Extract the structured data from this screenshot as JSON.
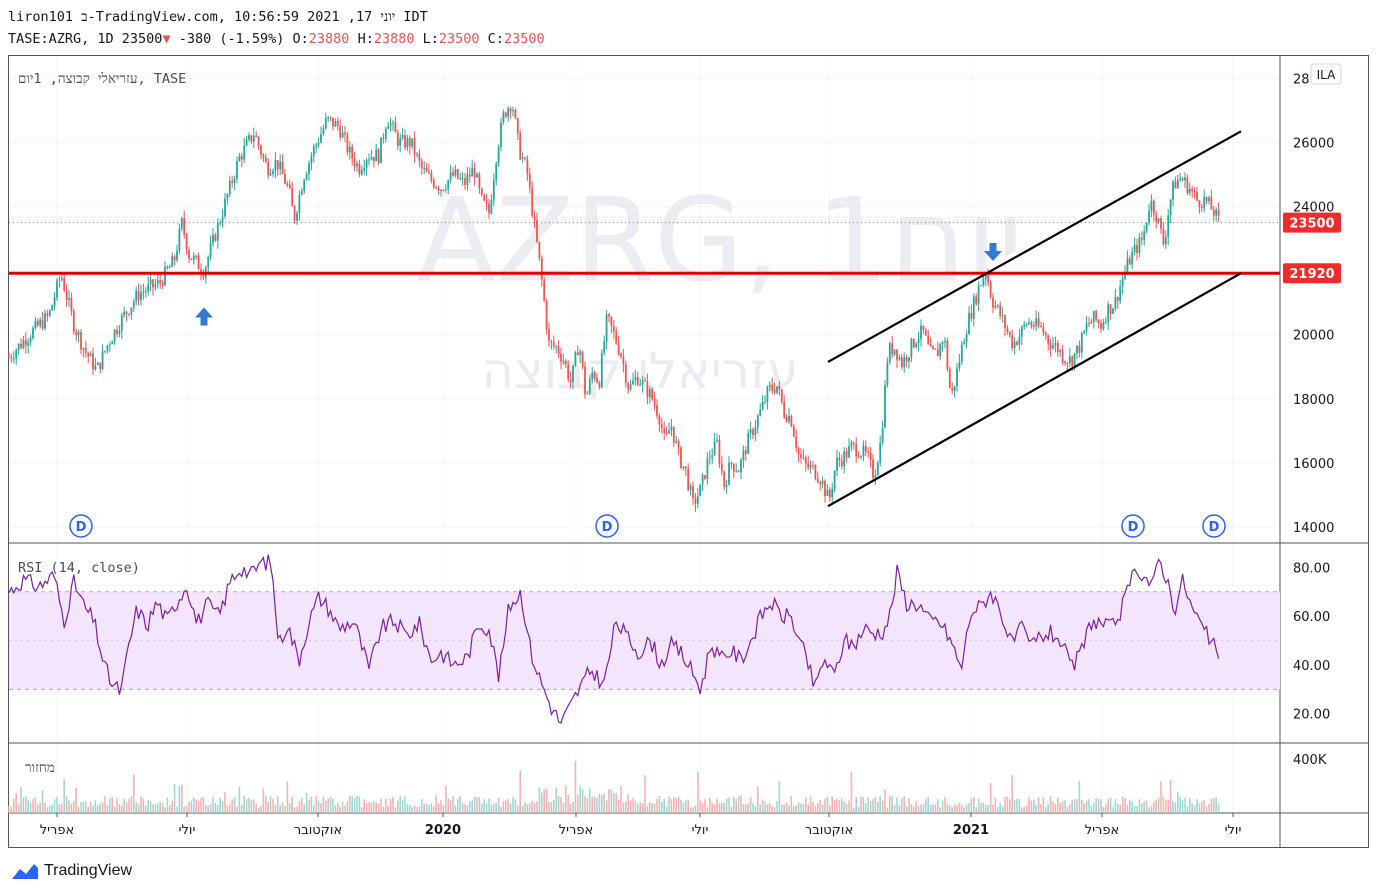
{
  "header": {
    "line1": "liron101 ב-TradingView.com, יוני 17, 2021 10:56:59 IDT",
    "symbol": "TASE:AZRG, 1D 23500",
    "change": "-380 (-1.59%)",
    "o_label": "O:",
    "o_val": "23880",
    "h_label": "H:",
    "h_val": "23880",
    "l_label": "L:",
    "l_val": "23500",
    "c_label": "C:",
    "c_val": "23500"
  },
  "colors": {
    "up": "#26a69a",
    "down": "#ef5350",
    "rsi": "#7b1fa2",
    "rsi_band": "#f3e5fb",
    "hline": "#e00000",
    "arrow": "#2f7bd0",
    "price_label_bg": "#ef2c2c",
    "dividend": "#2962ff"
  },
  "main_legend": "עזריאלי קבוצה, 1יום, TASE",
  "watermark": {
    "big": "AZRG, 1יום",
    "small": "עזריאלי קבוצה"
  },
  "currency_badge": "ILA",
  "rsi_legend": "RSI (14, close)",
  "volume_legend": "מחזור",
  "price_labels": {
    "last": "23500",
    "line": "21920"
  },
  "x_ticks": [
    "אפריל",
    "יולי",
    "אוקטובר",
    "2020",
    "אפריל",
    "יולי",
    "אוקטובר",
    "2021",
    "אפריל",
    "יולי"
  ],
  "dividend_marker": "D",
  "brand": "TradingView",
  "chart_data": [
    {
      "type": "candlestick",
      "title": "עזריאלי קבוצה, 1יום, TASE",
      "series_anchor_path": [
        [
          0,
          19300
        ],
        [
          20,
          20000
        ],
        [
          40,
          20600
        ],
        [
          52,
          21900
        ],
        [
          65,
          20300
        ],
        [
          76,
          19500
        ],
        [
          88,
          18900
        ],
        [
          100,
          19800
        ],
        [
          115,
          20600
        ],
        [
          130,
          21300
        ],
        [
          150,
          21600
        ],
        [
          165,
          22300
        ],
        [
          173,
          23500
        ],
        [
          180,
          22500
        ],
        [
          195,
          22000
        ],
        [
          215,
          24000
        ],
        [
          230,
          25500
        ],
        [
          245,
          26300
        ],
        [
          258,
          25200
        ],
        [
          268,
          25400
        ],
        [
          280,
          24500
        ],
        [
          285,
          23600
        ],
        [
          295,
          25000
        ],
        [
          305,
          25800
        ],
        [
          318,
          26700
        ],
        [
          330,
          26500
        ],
        [
          340,
          25700
        ],
        [
          350,
          25200
        ],
        [
          358,
          25600
        ],
        [
          370,
          25600
        ],
        [
          378,
          26800
        ],
        [
          390,
          26000
        ],
        [
          402,
          26000
        ],
        [
          412,
          25200
        ],
        [
          420,
          24900
        ],
        [
          432,
          24600
        ],
        [
          445,
          25000
        ],
        [
          455,
          24700
        ],
        [
          465,
          25200
        ],
        [
          472,
          24200
        ],
        [
          480,
          23800
        ],
        [
          488,
          25800
        ],
        [
          495,
          26900
        ],
        [
          503,
          27300
        ],
        [
          510,
          25800
        ],
        [
          518,
          25100
        ],
        [
          525,
          23500
        ],
        [
          532,
          21900
        ],
        [
          540,
          19700
        ],
        [
          548,
          19600
        ],
        [
          555,
          19200
        ],
        [
          562,
          18500
        ],
        [
          570,
          19800
        ],
        [
          577,
          18000
        ],
        [
          584,
          18900
        ],
        [
          590,
          18500
        ],
        [
          598,
          20500
        ],
        [
          605,
          20000
        ],
        [
          612,
          19400
        ],
        [
          620,
          18300
        ],
        [
          628,
          18700
        ],
        [
          635,
          18400
        ],
        [
          642,
          18100
        ],
        [
          650,
          17500
        ],
        [
          656,
          16600
        ],
        [
          662,
          17200
        ],
        [
          670,
          16200
        ],
        [
          677,
          15700
        ],
        [
          684,
          14700
        ],
        [
          692,
          15200
        ],
        [
          700,
          16200
        ],
        [
          708,
          16600
        ],
        [
          715,
          15300
        ],
        [
          722,
          16000
        ],
        [
          730,
          15800
        ],
        [
          738,
          16600
        ],
        [
          746,
          17200
        ],
        [
          754,
          17800
        ],
        [
          760,
          18300
        ],
        [
          768,
          18400
        ],
        [
          775,
          17600
        ],
        [
          782,
          17400
        ],
        [
          790,
          16200
        ],
        [
          797,
          15900
        ],
        [
          804,
          15800
        ],
        [
          812,
          15500
        ],
        [
          820,
          14800
        ],
        [
          827,
          16000
        ],
        [
          835,
          16200
        ],
        [
          843,
          16500
        ],
        [
          850,
          16400
        ],
        [
          858,
          16200
        ],
        [
          865,
          15600
        ],
        [
          872,
          16700
        ],
        [
          879,
          19500
        ],
        [
          886,
          19600
        ],
        [
          893,
          19100
        ],
        [
          900,
          19500
        ],
        [
          907,
          19900
        ],
        [
          914,
          20100
        ],
        [
          921,
          19400
        ],
        [
          928,
          19400
        ],
        [
          935,
          20000
        ],
        [
          942,
          18000
        ],
        [
          949,
          19000
        ],
        [
          956,
          20100
        ],
        [
          963,
          20800
        ],
        [
          970,
          21500
        ],
        [
          977,
          22000
        ],
        [
          983,
          21100
        ],
        [
          990,
          20700
        ],
        [
          997,
          20200
        ],
        [
          1004,
          19700
        ],
        [
          1011,
          20000
        ],
        [
          1018,
          20400
        ],
        [
          1025,
          20300
        ],
        [
          1032,
          20200
        ],
        [
          1040,
          19800
        ],
        [
          1048,
          19600
        ],
        [
          1055,
          19300
        ],
        [
          1062,
          19200
        ],
        [
          1070,
          19600
        ],
        [
          1078,
          20300
        ],
        [
          1085,
          20500
        ],
        [
          1092,
          20300
        ],
        [
          1099,
          20800
        ],
        [
          1106,
          21000
        ],
        [
          1113,
          21700
        ],
        [
          1120,
          22300
        ],
        [
          1127,
          22700
        ],
        [
          1134,
          23000
        ],
        [
          1141,
          24200
        ],
        [
          1148,
          23700
        ],
        [
          1155,
          22800
        ],
        [
          1160,
          24000
        ],
        [
          1165,
          24700
        ],
        [
          1172,
          24900
        ],
        [
          1180,
          24600
        ],
        [
          1188,
          24200
        ],
        [
          1196,
          24200
        ],
        [
          1204,
          23880
        ],
        [
          1210,
          23500
        ]
      ],
      "ylim": [
        13500,
        28700
      ],
      "y_ticks": [
        14000,
        16000,
        18000,
        20000,
        22000,
        24000,
        26000,
        28000
      ],
      "last_close": 23500,
      "horizontal_line": 21920,
      "channel_upper": [
        [
          19150,
          26350
        ]
      ],
      "channel_lower": [
        [
          14650,
          21920
        ]
      ],
      "arrows": [
        {
          "dir": "up",
          "at": 195,
          "price": 20600
        },
        {
          "dir": "down",
          "at": 984,
          "price": 22550
        }
      ],
      "dividends": [
        80,
        606,
        1132,
        1213
      ]
    },
    {
      "type": "line",
      "title": "RSI (14, close)",
      "ylim": [
        8,
        90
      ],
      "y_ticks": [
        20.0,
        40.0,
        60.0,
        80.0
      ],
      "y_tick_labels": [
        "20.00",
        "40.00",
        "60.00",
        "80.00"
      ],
      "band": [
        30,
        70
      ],
      "anchor_path": [
        [
          0,
          70
        ],
        [
          15,
          75
        ],
        [
          30,
          72
        ],
        [
          45,
          77
        ],
        [
          55,
          58
        ],
        [
          65,
          74
        ],
        [
          75,
          64
        ],
        [
          85,
          58
        ],
        [
          95,
          40
        ],
        [
          103,
          32
        ],
        [
          112,
          29
        ],
        [
          120,
          48
        ],
        [
          128,
          63
        ],
        [
          138,
          56
        ],
        [
          148,
          66
        ],
        [
          158,
          58
        ],
        [
          168,
          66
        ],
        [
          178,
          73
        ],
        [
          188,
          57
        ],
        [
          198,
          65
        ],
        [
          210,
          60
        ],
        [
          222,
          75
        ],
        [
          232,
          80
        ],
        [
          242,
          77
        ],
        [
          252,
          82
        ],
        [
          262,
          82
        ],
        [
          270,
          48
        ],
        [
          278,
          57
        ],
        [
          290,
          42
        ],
        [
          300,
          58
        ],
        [
          310,
          68
        ],
        [
          320,
          63
        ],
        [
          330,
          55
        ],
        [
          345,
          58
        ],
        [
          360,
          38
        ],
        [
          372,
          55
        ],
        [
          385,
          58
        ],
        [
          398,
          52
        ],
        [
          410,
          57
        ],
        [
          422,
          42
        ],
        [
          432,
          45
        ],
        [
          445,
          40
        ],
        [
          458,
          43
        ],
        [
          470,
          57
        ],
        [
          480,
          55
        ],
        [
          490,
          35
        ],
        [
          500,
          64
        ],
        [
          512,
          70
        ],
        [
          522,
          45
        ],
        [
          532,
          33
        ],
        [
          542,
          23
        ],
        [
          552,
          16
        ],
        [
          560,
          22
        ],
        [
          570,
          30
        ],
        [
          582,
          38
        ],
        [
          595,
          32
        ],
        [
          607,
          58
        ],
        [
          617,
          52
        ],
        [
          630,
          45
        ],
        [
          642,
          50
        ],
        [
          652,
          40
        ],
        [
          662,
          48
        ],
        [
          672,
          45
        ],
        [
          682,
          38
        ],
        [
          692,
          30
        ],
        [
          702,
          49
        ],
        [
          712,
          42
        ],
        [
          722,
          46
        ],
        [
          732,
          42
        ],
        [
          742,
          50
        ],
        [
          752,
          60
        ],
        [
          762,
          66
        ],
        [
          772,
          60
        ],
        [
          782,
          60
        ],
        [
          790,
          50
        ],
        [
          798,
          42
        ],
        [
          806,
          30
        ],
        [
          815,
          43
        ],
        [
          825,
          35
        ],
        [
          835,
          50
        ],
        [
          845,
          48
        ],
        [
          855,
          55
        ],
        [
          865,
          53
        ],
        [
          875,
          54
        ],
        [
          882,
          62
        ],
        [
          888,
          78
        ],
        [
          898,
          65
        ],
        [
          910,
          65
        ],
        [
          920,
          58
        ],
        [
          930,
          58
        ],
        [
          942,
          50
        ],
        [
          952,
          38
        ],
        [
          962,
          62
        ],
        [
          972,
          64
        ],
        [
          982,
          70
        ],
        [
          992,
          62
        ],
        [
          1002,
          48
        ],
        [
          1012,
          55
        ],
        [
          1022,
          48
        ],
        [
          1032,
          52
        ],
        [
          1042,
          53
        ],
        [
          1052,
          50
        ],
        [
          1062,
          38
        ],
        [
          1072,
          45
        ],
        [
          1082,
          58
        ],
        [
          1092,
          57
        ],
        [
          1102,
          55
        ],
        [
          1112,
          62
        ],
        [
          1120,
          72
        ],
        [
          1128,
          80
        ],
        [
          1136,
          76
        ],
        [
          1144,
          72
        ],
        [
          1150,
          84
        ],
        [
          1158,
          75
        ],
        [
          1166,
          63
        ],
        [
          1174,
          75
        ],
        [
          1182,
          64
        ],
        [
          1190,
          58
        ],
        [
          1198,
          52
        ],
        [
          1206,
          47
        ],
        [
          1212,
          44
        ]
      ]
    },
    {
      "type": "bar",
      "title": "מחזור",
      "ylim": [
        0,
        520000
      ],
      "y_ticks": [
        400000
      ],
      "y_tick_labels": [
        "400K"
      ]
    }
  ]
}
